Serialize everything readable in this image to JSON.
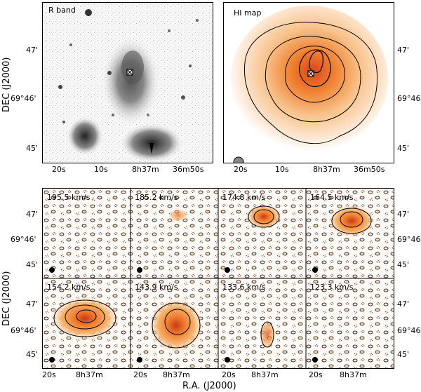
{
  "top_panels": {
    "left_label": "R band",
    "right_label": "HI map"
  },
  "velocity_panels": [
    {
      "label": "195.5 km/s"
    },
    {
      "label": "185.2 km/s"
    },
    {
      "label": "174.8 km/s"
    },
    {
      "label": "164.5 km/s"
    },
    {
      "label": "154.2 km/s"
    },
    {
      "label": "143.9 km/s"
    },
    {
      "label": "133.6 km/s"
    },
    {
      "label": "123.3 km/s"
    }
  ],
  "axes": {
    "y_title": "DEC (J2000)",
    "x_title": "R.A. (J2000)",
    "top_y_ticks": [
      "47'",
      "69°46'",
      "45'"
    ],
    "top_x_ticks": [
      "20s",
      "10s",
      "8h37m",
      "36m50s"
    ],
    "grid_y_ticks": [
      "47'",
      "69°46'",
      "45'"
    ],
    "grid_x_ticks": [
      "20s",
      "8h37m"
    ]
  },
  "colors": {
    "hi_light": "#fde9d6",
    "hi_mid": "#f6a24a",
    "hi_dark": "#d8461a",
    "rband_bg": "#f4f4f4"
  }
}
